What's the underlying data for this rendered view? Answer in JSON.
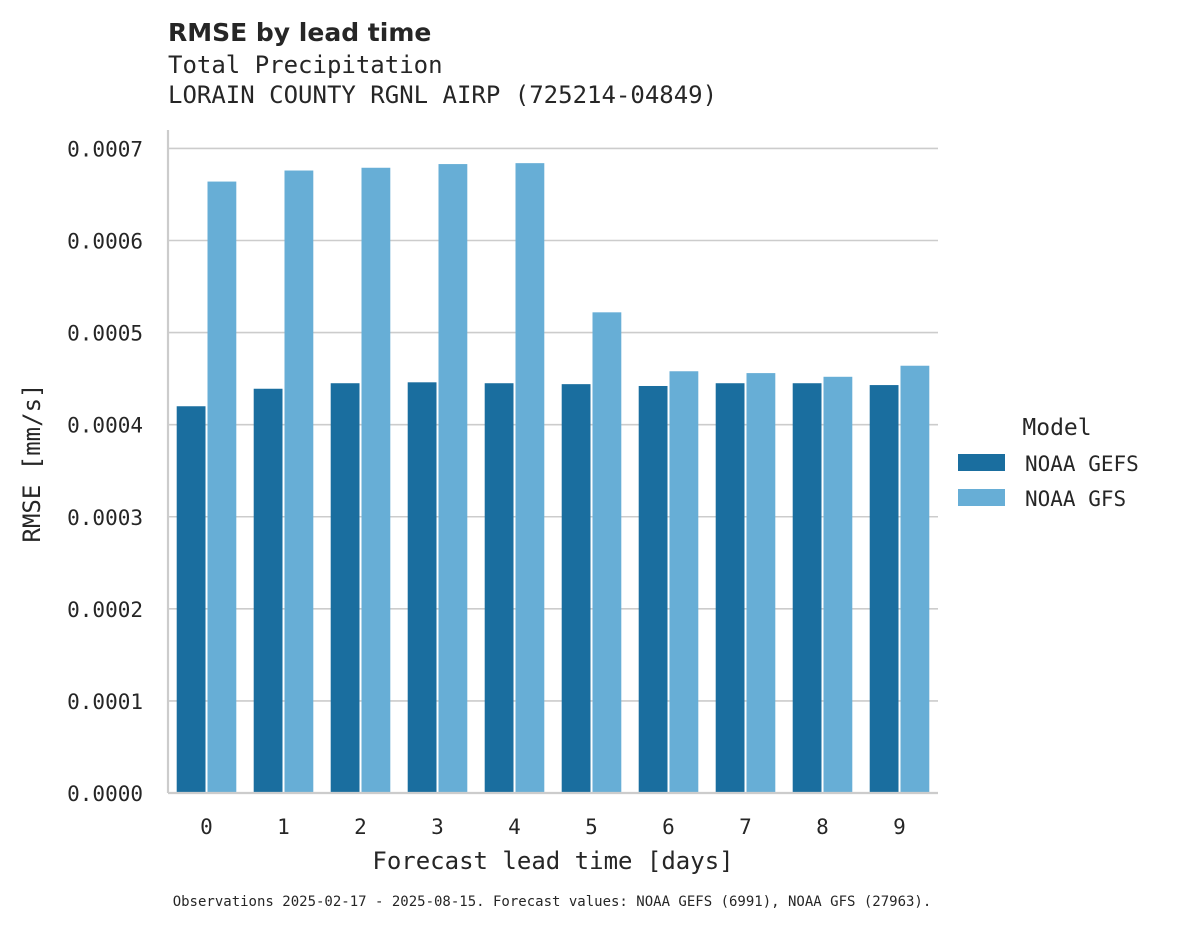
{
  "chart_data": {
    "type": "bar",
    "title": "RMSE by lead time",
    "subtitle_lines": [
      "Total Precipitation",
      "LORAIN COUNTY RGNL AIRP (725214-04849)"
    ],
    "xlabel": "Forecast lead time [days]",
    "ylabel": "RMSE [mm/s]",
    "categories": [
      "0",
      "1",
      "2",
      "3",
      "4",
      "5",
      "6",
      "7",
      "8",
      "9"
    ],
    "ylim": [
      0,
      0.00072
    ],
    "yticks": [
      0.0,
      0.0001,
      0.0002,
      0.0003,
      0.0004,
      0.0005,
      0.0006,
      0.0007
    ],
    "ytick_labels": [
      "0.0000",
      "0.0001",
      "0.0002",
      "0.0003",
      "0.0004",
      "0.0005",
      "0.0006",
      "0.0007"
    ],
    "grid": true,
    "legend": {
      "title": "Model",
      "placement": "right"
    },
    "series": [
      {
        "name": "NOAA GEFS",
        "color": "#1a6e9f",
        "values": [
          0.00042,
          0.000439,
          0.000445,
          0.000446,
          0.000445,
          0.000444,
          0.000442,
          0.000445,
          0.000445,
          0.000443
        ]
      },
      {
        "name": "NOAA GFS",
        "color": "#67aed6",
        "values": [
          0.000664,
          0.000676,
          0.000679,
          0.000683,
          0.000684,
          0.000522,
          0.000458,
          0.000456,
          0.000452,
          0.000464
        ]
      }
    ],
    "footnote": "Observations 2025-02-17 - 2025-08-15. Forecast values: NOAA GEFS (6991), NOAA GFS (27963)."
  }
}
